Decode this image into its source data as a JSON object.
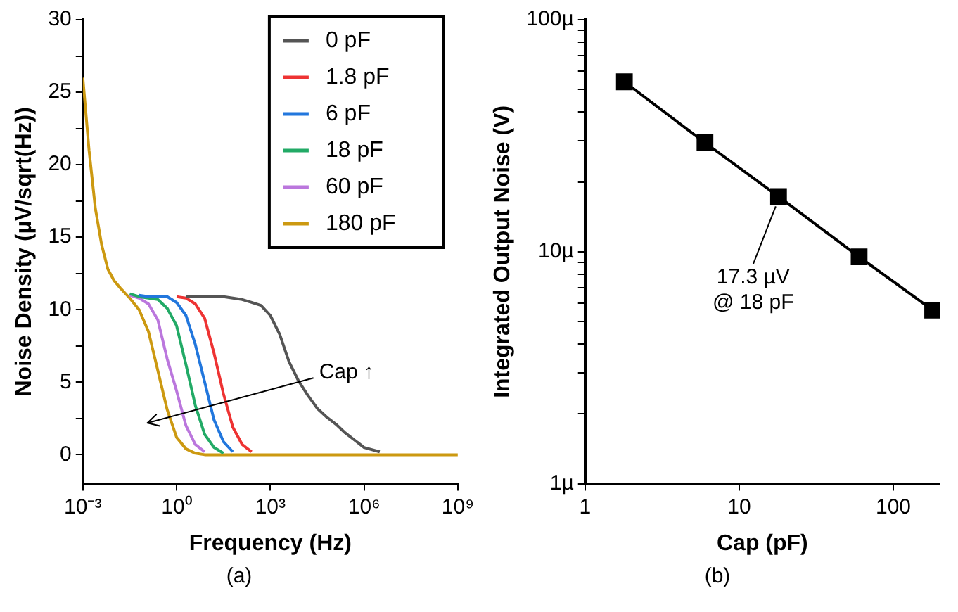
{
  "chart_data": [
    {
      "type": "line",
      "xlabel": "Frequency (Hz)",
      "ylabel": "Noise Density (µV/sqrt(Hz))",
      "log": "x",
      "grid": false,
      "legend": "top right",
      "marker": "none",
      "x": [
        0.001,
        0.00158,
        0.00251,
        0.00398,
        0.00631,
        0.01,
        0.0158,
        0.0316,
        0.0631,
        0.126,
        0.251,
        0.501,
        1,
        2,
        3.98,
        7.94,
        15.8,
        31.6,
        63.1,
        126,
        251,
        501,
        1000,
        2000,
        3980,
        7940,
        15800,
        31600,
        63100,
        126000,
        251000,
        501000,
        1000000,
        3160000,
        10000000,
        100000000,
        1000000000
      ],
      "series": [
        {
          "name": "0 pF",
          "color": "#555555",
          "values": [
            null,
            null,
            null,
            null,
            null,
            null,
            null,
            null,
            null,
            null,
            null,
            null,
            null,
            10.9,
            10.9,
            10.9,
            10.9,
            10.9,
            10.8,
            10.7,
            10.5,
            10.3,
            9.6,
            8.3,
            6.4,
            5.1,
            4.1,
            3.2,
            2.6,
            2.1,
            1.5,
            1.0,
            0.5,
            0.2,
            null,
            null,
            null
          ]
        },
        {
          "name": "1.8 pF",
          "color": "#ee3333",
          "values": [
            null,
            null,
            null,
            null,
            null,
            null,
            null,
            null,
            null,
            null,
            null,
            null,
            10.9,
            10.8,
            10.4,
            9.4,
            7.0,
            4.2,
            1.9,
            0.7,
            0.2,
            null,
            null,
            null,
            null,
            null,
            null,
            null,
            null,
            null,
            null,
            null,
            null,
            null,
            null,
            null,
            null
          ]
        },
        {
          "name": "6 pF",
          "color": "#2277dd",
          "values": [
            null,
            null,
            null,
            null,
            null,
            null,
            null,
            null,
            11,
            10.9,
            10.9,
            10.9,
            10.5,
            9.6,
            7.6,
            5.0,
            2.4,
            0.9,
            0.2,
            null,
            null,
            null,
            null,
            null,
            null,
            null,
            null,
            null,
            null,
            null,
            null,
            null,
            null,
            null,
            null,
            null,
            null
          ]
        },
        {
          "name": "18 pF",
          "color": "#22aa66",
          "values": [
            null,
            null,
            null,
            null,
            null,
            null,
            null,
            11.1,
            10.9,
            10.8,
            10.7,
            10.1,
            8.9,
            6.2,
            3.4,
            1.4,
            0.5,
            0.1,
            null,
            null,
            null,
            null,
            null,
            null,
            null,
            null,
            null,
            null,
            null,
            null,
            null,
            null,
            null,
            null,
            null,
            null,
            null
          ]
        },
        {
          "name": "60 pF",
          "color": "#bb77dd",
          "values": [
            null,
            null,
            null,
            null,
            null,
            null,
            null,
            11.0,
            10.8,
            10.4,
            9.3,
            6.6,
            4.4,
            2.0,
            0.7,
            0.2,
            null,
            null,
            null,
            null,
            null,
            null,
            null,
            null,
            null,
            null,
            null,
            null,
            null,
            null,
            null,
            null,
            null,
            null,
            null,
            null,
            null
          ]
        },
        {
          "name": "180 pF",
          "color": "#cc9911",
          "values": [
            26,
            21,
            17,
            14.5,
            12.8,
            12,
            11.5,
            10.8,
            10.0,
            8.5,
            5.8,
            3.1,
            1.2,
            0.4,
            0.1,
            0,
            0,
            0,
            0,
            0,
            0,
            0,
            0,
            0,
            0,
            0,
            0,
            0,
            0,
            0,
            0,
            0,
            0,
            0,
            0,
            0,
            0
          ]
        }
      ],
      "xlim": [
        0.001,
        1000000000
      ],
      "xticks": [
        {
          "value": 0.001,
          "label": "10⁻³"
        },
        {
          "value": 1,
          "label": "10⁰"
        },
        {
          "value": 1000,
          "label": "10³"
        },
        {
          "value": 1000000,
          "label": "10⁶"
        },
        {
          "value": 1000000000,
          "label": "10⁹"
        }
      ],
      "ylim": [
        -2,
        30
      ],
      "yticks": [
        0,
        {
          "value": 2.5,
          "label": null
        },
        5,
        {
          "value": 7.5,
          "label": null
        },
        10,
        {
          "value": 12.5,
          "label": null
        },
        15,
        {
          "value": 17.5,
          "label": null
        },
        20,
        {
          "value": 22.5,
          "label": null
        },
        25,
        {
          "value": 27.5,
          "label": null
        },
        30
      ],
      "annotations": [
        "Cap ↑",
        "(a)"
      ]
    },
    {
      "type": "line",
      "xlabel": "Cap (pF)",
      "ylabel": "Integrated Output Noise (V)",
      "log": "xy",
      "grid": false,
      "marker": "square",
      "x": [
        1.8,
        6,
        18,
        60,
        180
      ],
      "series": [
        {
          "color": "#000000",
          "values": [
            54,
            29.5,
            17.3,
            9.5,
            5.6
          ]
        }
      ],
      "xlim": [
        1,
        200
      ],
      "xticks": [
        1,
        10,
        100
      ],
      "ylim": [
        1,
        100
      ],
      "yticks": [
        {
          "value": 1,
          "label": "1µ"
        },
        {
          "value": 2,
          "label": null
        },
        {
          "value": 3,
          "label": null
        },
        {
          "value": 4,
          "label": null
        },
        {
          "value": 5,
          "label": null
        },
        {
          "value": 6,
          "label": null
        },
        {
          "value": 7,
          "label": null
        },
        {
          "value": 8,
          "label": null
        },
        {
          "value": 9,
          "label": null
        },
        {
          "value": 10,
          "label": "10µ"
        },
        {
          "value": 20,
          "label": null
        },
        {
          "value": 30,
          "label": null
        },
        {
          "value": 40,
          "label": null
        },
        {
          "value": 50,
          "label": null
        },
        {
          "value": 60,
          "label": null
        },
        {
          "value": 70,
          "label": null
        },
        {
          "value": 80,
          "label": null
        },
        {
          "value": 90,
          "label": null
        },
        {
          "value": 100,
          "label": "100µ"
        }
      ],
      "annotations": [
        {
          "text": "17.3 µV\n@ 18 pF",
          "x": 18,
          "y": 17.3
        },
        "(b)"
      ]
    }
  ]
}
